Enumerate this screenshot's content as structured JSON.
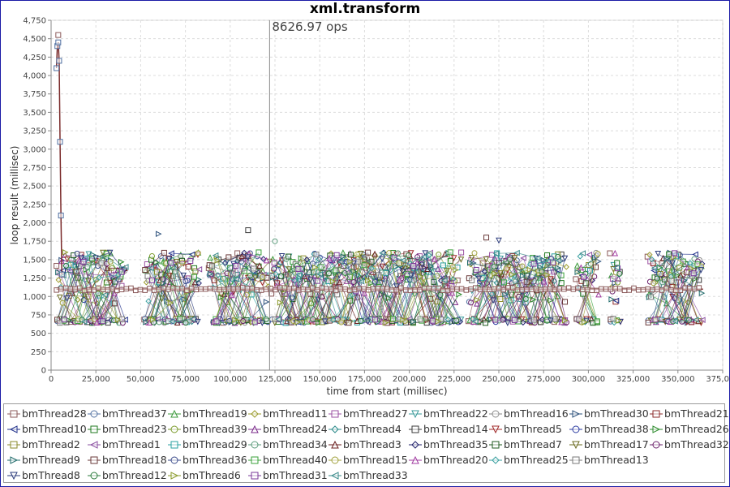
{
  "chart_data": {
    "type": "line",
    "title": "xml.transform",
    "xlabel": "time from start (millisec)",
    "ylabel": "loop result (millisec)",
    "xlim": [
      0,
      375000
    ],
    "ylim": [
      0,
      4750
    ],
    "x_ticks": [
      0,
      25000,
      50000,
      75000,
      100000,
      125000,
      150000,
      175000,
      200000,
      225000,
      250000,
      275000,
      300000,
      325000,
      350000,
      375000
    ],
    "y_ticks": [
      0,
      250,
      500,
      750,
      1000,
      1250,
      1500,
      1750,
      2000,
      2250,
      2500,
      2750,
      3000,
      3250,
      3500,
      3750,
      4000,
      4250,
      4500,
      4750
    ],
    "x_tick_labels": [
      "0",
      "25,000",
      "50,000",
      "75,000",
      "100,000",
      "125,000",
      "150,000",
      "175,000",
      "200,000",
      "225,000",
      "250,000",
      "275,000",
      "300,000",
      "325,000",
      "350,000",
      "375,000"
    ],
    "y_tick_labels": [
      "0",
      "250",
      "500",
      "750",
      "1,000",
      "1,250",
      "1,500",
      "1,750",
      "2,000",
      "2,250",
      "2,500",
      "2,750",
      "3,000",
      "3,250",
      "3,500",
      "3,750",
      "4,000",
      "4,250",
      "4,500",
      "4,750"
    ],
    "grid": true,
    "legend_position": "bottom",
    "annotation": {
      "x": 122000,
      "label": "8626.97 ops"
    },
    "active_ranges": [
      [
        3000,
        42000
      ],
      [
        52000,
        83000
      ],
      [
        88000,
        122000
      ],
      [
        123000,
        229000
      ],
      [
        233000,
        288000
      ],
      [
        293000,
        306000
      ],
      [
        312000,
        318000
      ],
      [
        333000,
        364000
      ]
    ],
    "baseline": {
      "x_start": 3000,
      "x_end": 364000,
      "value": 1100
    },
    "warmup": {
      "x": [
        3000,
        3500,
        4000,
        4500,
        5000,
        5500,
        6000
      ],
      "y": [
        4100,
        4400,
        4450,
        4200,
        3100,
        2100,
        1300
      ]
    },
    "peaks": [
      {
        "x": 4000,
        "y": 4550
      },
      {
        "x": 60000,
        "y": 1850
      },
      {
        "x": 110000,
        "y": 1900
      },
      {
        "x": 125000,
        "y": 1750
      },
      {
        "x": 243000,
        "y": 1800
      },
      {
        "x": 250000,
        "y": 1760
      }
    ],
    "series": [
      {
        "name": "bmThread28",
        "color": "#8b5a5a",
        "marker": "square"
      },
      {
        "name": "bmThread37",
        "color": "#4f6fa0",
        "marker": "circle"
      },
      {
        "name": "bmThread19",
        "color": "#3c9a3c",
        "marker": "triangle-up"
      },
      {
        "name": "bmThread11",
        "color": "#9a9a2a",
        "marker": "diamond"
      },
      {
        "name": "bmThread27",
        "color": "#9a4fa0",
        "marker": "square"
      },
      {
        "name": "bmThread22",
        "color": "#3a9a9a",
        "marker": "triangle-down"
      },
      {
        "name": "bmThread16",
        "color": "#8a8a8a",
        "marker": "circle"
      },
      {
        "name": "bmThread30",
        "color": "#2a4f7a",
        "marker": "triangle-right"
      },
      {
        "name": "bmThread21",
        "color": "#8b2a2a",
        "marker": "square"
      },
      {
        "name": "bmThread10",
        "color": "#1f2f8a",
        "marker": "triangle-left"
      },
      {
        "name": "bmThread23",
        "color": "#1f7a1f",
        "marker": "square"
      },
      {
        "name": "bmThread39",
        "color": "#7a9a2a",
        "marker": "circle"
      },
      {
        "name": "bmThread24",
        "color": "#7a2a8a",
        "marker": "triangle-up"
      },
      {
        "name": "bmThread4",
        "color": "#2a8a8a",
        "marker": "diamond"
      },
      {
        "name": "bmThread14",
        "color": "#3a3a3a",
        "marker": "square"
      },
      {
        "name": "bmThread5",
        "color": "#a02a2a",
        "marker": "triangle-down"
      },
      {
        "name": "bmThread38",
        "color": "#2a3aa0",
        "marker": "circle"
      },
      {
        "name": "bmThread26",
        "color": "#2a8a2a",
        "marker": "triangle-right"
      },
      {
        "name": "bmThread2",
        "color": "#8a8a2a",
        "marker": "square"
      },
      {
        "name": "bmThread1",
        "color": "#8a4fa0",
        "marker": "triangle-left"
      },
      {
        "name": "bmThread29",
        "color": "#2aa0a0",
        "marker": "square"
      },
      {
        "name": "bmThread34",
        "color": "#5a9a7a",
        "marker": "circle"
      },
      {
        "name": "bmThread3",
        "color": "#6a1f1f",
        "marker": "triangle-up"
      },
      {
        "name": "bmThread35",
        "color": "#1f1f6a",
        "marker": "diamond"
      },
      {
        "name": "bmThread7",
        "color": "#1f5a1f",
        "marker": "square"
      },
      {
        "name": "bmThread17",
        "color": "#6a6a1f",
        "marker": "triangle-down"
      },
      {
        "name": "bmThread32",
        "color": "#6a1f6a",
        "marker": "circle"
      },
      {
        "name": "bmThread9",
        "color": "#1f6a6a",
        "marker": "triangle-right"
      },
      {
        "name": "bmThread18",
        "color": "#6a3a3a",
        "marker": "square"
      },
      {
        "name": "bmThread36",
        "color": "#3a4a8a",
        "marker": "circle"
      },
      {
        "name": "bmThread40",
        "color": "#3aa03a",
        "marker": "square"
      },
      {
        "name": "bmThread15",
        "color": "#a0a03a",
        "marker": "circle"
      },
      {
        "name": "bmThread20",
        "color": "#a03aa0",
        "marker": "triangle-up"
      },
      {
        "name": "bmThread25",
        "color": "#3aa0a0",
        "marker": "diamond"
      },
      {
        "name": "bmThread13",
        "color": "#7a7a7a",
        "marker": "square"
      },
      {
        "name": "bmThread8",
        "color": "#2a3a7a",
        "marker": "triangle-down"
      },
      {
        "name": "bmThread12",
        "color": "#2a7a3a",
        "marker": "circle"
      },
      {
        "name": "bmThread6",
        "color": "#8a9a2a",
        "marker": "triangle-right"
      },
      {
        "name": "bmThread31",
        "color": "#7a3a9a",
        "marker": "square"
      },
      {
        "name": "bmThread33",
        "color": "#3a8a8a",
        "marker": "triangle-left"
      }
    ]
  }
}
